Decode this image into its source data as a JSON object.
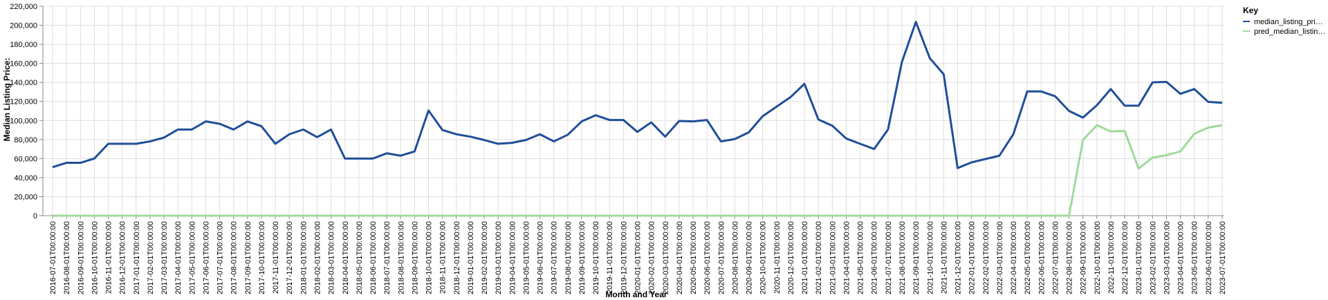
{
  "chart_data": {
    "type": "line",
    "xlabel": "Month and Year",
    "ylabel": "Median Listing Price:",
    "ylim": [
      0,
      220000
    ],
    "y_ticks": [
      0,
      20000,
      40000,
      60000,
      80000,
      100000,
      120000,
      140000,
      160000,
      180000,
      200000,
      220000
    ],
    "y_tick_labels": [
      "0",
      "20,000",
      "40,000",
      "60,000",
      "80,000",
      "100,000",
      "120,000",
      "140,000",
      "160,000",
      "180,000",
      "200,000",
      "220,000"
    ],
    "grid": true,
    "legend": {
      "title": "Key",
      "position": "right"
    },
    "categories": [
      "2016-07-01T00:00:00",
      "2016-08-01T00:00:00",
      "2016-09-01T00:00:00",
      "2016-10-01T00:00:00",
      "2016-11-01T00:00:00",
      "2016-12-01T00:00:00",
      "2017-01-01T00:00:00",
      "2017-02-01T00:00:00",
      "2017-03-01T00:00:00",
      "2017-04-01T00:00:00",
      "2017-05-01T00:00:00",
      "2017-06-01T00:00:00",
      "2017-07-01T00:00:00",
      "2017-08-01T00:00:00",
      "2017-09-01T00:00:00",
      "2017-10-01T00:00:00",
      "2017-11-01T00:00:00",
      "2017-12-01T00:00:00",
      "2018-01-01T00:00:00",
      "2018-02-01T00:00:00",
      "2018-03-01T00:00:00",
      "2018-04-01T00:00:00",
      "2018-05-01T00:00:00",
      "2018-06-01T00:00:00",
      "2018-07-01T00:00:00",
      "2018-08-01T00:00:00",
      "2018-09-01T00:00:00",
      "2018-10-01T00:00:00",
      "2018-11-01T00:00:00",
      "2018-12-01T00:00:00",
      "2019-01-01T00:00:00",
      "2019-02-01T00:00:00",
      "2019-03-01T00:00:00",
      "2019-04-01T00:00:00",
      "2019-05-01T00:00:00",
      "2019-06-01T00:00:00",
      "2019-07-01T00:00:00",
      "2019-08-01T00:00:00",
      "2019-09-01T00:00:00",
      "2019-10-01T00:00:00",
      "2019-11-01T00:00:00",
      "2019-12-01T00:00:00",
      "2020-01-01T00:00:00",
      "2020-02-01T00:00:00",
      "2020-03-01T00:00:00",
      "2020-04-01T00:00:00",
      "2020-05-01T00:00:00",
      "2020-06-01T00:00:00",
      "2020-07-01T00:00:00",
      "2020-08-01T00:00:00",
      "2020-09-01T00:00:00",
      "2020-10-01T00:00:00",
      "2020-11-01T00:00:00",
      "2020-12-01T00:00:00",
      "2021-01-01T00:00:00",
      "2021-02-01T00:00:00",
      "2021-03-01T00:00:00",
      "2021-04-01T00:00:00",
      "2021-05-01T00:00:00",
      "2021-06-01T00:00:00",
      "2021-07-01T00:00:00",
      "2021-08-01T00:00:00",
      "2021-09-01T00:00:00",
      "2021-10-01T00:00:00",
      "2021-11-01T00:00:00",
      "2021-12-01T00:00:00",
      "2022-01-01T00:00:00",
      "2022-02-01T00:00:00",
      "2022-03-01T00:00:00",
      "2022-04-01T00:00:00",
      "2022-05-01T00:00:00",
      "2022-06-01T00:00:00",
      "2022-07-01T00:00:00",
      "2022-08-01T00:00:00",
      "2022-09-01T00:00:00",
      "2022-10-01T00:00:00",
      "2022-11-01T00:00:00",
      "2022-12-01T00:00:00",
      "2023-01-01T00:00:00",
      "2023-02-01T00:00:00",
      "2023-03-01T00:00:00",
      "2023-04-01T00:00:00",
      "2023-05-01T00:00:00",
      "2023-06-01T00:00:00",
      "2023-07-01T00:00:00"
    ],
    "series": [
      {
        "name": "median_listing_pri…",
        "color": "#1f4e99",
        "values": [
          51000,
          55500,
          55500,
          60000,
          75500,
          75500,
          75500,
          78000,
          82000,
          90500,
          90500,
          99000,
          96500,
          90500,
          99000,
          94000,
          75500,
          85500,
          90500,
          82500,
          90500,
          60000,
          60000,
          60000,
          65500,
          63000,
          67500,
          110500,
          90000,
          85500,
          83000,
          79500,
          75500,
          76500,
          79500,
          85500,
          78000,
          85000,
          99000,
          105500,
          100500,
          100500,
          88000,
          98000,
          83000,
          99500,
          99000,
          100500,
          78000,
          80500,
          87500,
          104500,
          114500,
          124500,
          138500,
          101000,
          94500,
          81000,
          75500,
          70000,
          90500,
          161500,
          203500,
          165500,
          148500,
          50000,
          56000,
          59500,
          63000,
          85500,
          130500,
          130500,
          125500,
          110000,
          103000,
          116000,
          133000,
          115500,
          115500,
          140000,
          140500,
          128000,
          133000,
          119500,
          118500
        ]
      },
      {
        "name": "pred_median_listin…",
        "color": "#a1d99b",
        "values": [
          0,
          0,
          0,
          0,
          0,
          0,
          0,
          0,
          0,
          0,
          0,
          0,
          0,
          0,
          0,
          0,
          0,
          0,
          0,
          0,
          0,
          0,
          0,
          0,
          0,
          0,
          0,
          0,
          0,
          0,
          0,
          0,
          0,
          0,
          0,
          0,
          0,
          0,
          0,
          0,
          0,
          0,
          0,
          0,
          0,
          0,
          0,
          0,
          0,
          0,
          0,
          0,
          0,
          0,
          0,
          0,
          0,
          0,
          0,
          0,
          0,
          0,
          0,
          0,
          0,
          0,
          0,
          0,
          0,
          0,
          0,
          0,
          0,
          0,
          79500,
          95000,
          88500,
          89000,
          49500,
          61000,
          63500,
          67500,
          86000,
          92500,
          95000
        ]
      }
    ]
  }
}
